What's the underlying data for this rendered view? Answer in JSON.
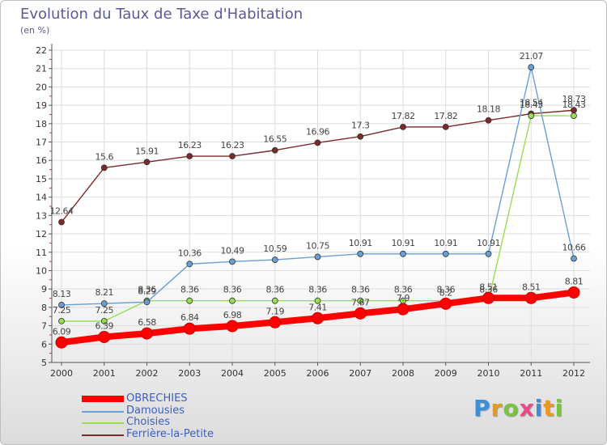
{
  "chart_data": {
    "type": "line",
    "title": "Evolution du Taux de Taxe d'Habitation",
    "subtitle": "(en %)",
    "x": [
      "2000",
      "2001",
      "2002",
      "2003",
      "2004",
      "2005",
      "2006",
      "2007",
      "2008",
      "2009",
      "2010",
      "2011",
      "2012"
    ],
    "ylim": [
      5,
      22
    ],
    "yticks": [
      "5",
      "6",
      "7",
      "8",
      "9",
      "10",
      "11",
      "12",
      "13",
      "14",
      "15",
      "16",
      "17",
      "18",
      "19",
      "20",
      "21",
      "22"
    ],
    "grid": true,
    "series": [
      {
        "name": "OBRECHIES",
        "color": "#ff0000",
        "values": [
          6.09,
          6.39,
          6.58,
          6.84,
          6.98,
          7.19,
          7.41,
          7.67,
          7.9,
          8.2,
          8.51,
          8.51,
          8.81
        ],
        "labels": [
          "6.09",
          "6.39",
          "6.58",
          "6.84",
          "6.98",
          "7.19",
          "7.41",
          "7.67",
          "7.9",
          "8.2",
          "8.51",
          "8.51",
          "8.81"
        ]
      },
      {
        "name": "Damousies",
        "color": "#6a9fd4",
        "values": [
          8.13,
          8.21,
          8.29,
          10.36,
          10.49,
          10.59,
          10.75,
          10.91,
          10.91,
          10.91,
          10.91,
          21.07,
          10.66
        ],
        "labels": [
          "8.13",
          "8.21",
          "8.29",
          "10.36",
          "10.49",
          "10.59",
          "10.75",
          "10.91",
          "10.91",
          "10.91",
          "10.91",
          "21.07",
          "10.66"
        ]
      },
      {
        "name": "Choisies",
        "color": "#99dd55",
        "values": [
          7.25,
          7.25,
          8.36,
          8.36,
          8.36,
          8.36,
          8.36,
          8.36,
          8.36,
          8.36,
          8.36,
          18.43,
          18.43
        ],
        "labels": [
          "7.25",
          "7.25",
          "8.36",
          "8.36",
          "8.36",
          "8.36",
          "8.36",
          "8.36",
          "8.36",
          "8.36",
          "8.36",
          "18.43",
          "18.43"
        ]
      },
      {
        "name": "Ferrière-la-Petite",
        "color": "#7a2a2a",
        "values": [
          12.64,
          15.6,
          15.91,
          16.23,
          16.23,
          16.55,
          16.96,
          17.3,
          17.82,
          17.82,
          18.18,
          18.54,
          18.73
        ],
        "labels": [
          "12.64",
          "15.6",
          "15.91",
          "16.23",
          "16.23",
          "16.55",
          "16.96",
          "17.3",
          "17.82",
          "17.82",
          "18.18",
          "18.54",
          "18.73"
        ]
      }
    ],
    "legend_position": "bottom-left"
  },
  "logo": {
    "letters": [
      "P",
      "r",
      "o",
      "x",
      "i",
      "t",
      "i"
    ],
    "colors": [
      "#3a8fd8",
      "#e89a1e",
      "#7cc242",
      "#e84a8a",
      "#3a8fd8",
      "#e89a1e",
      "#7cc242"
    ]
  }
}
